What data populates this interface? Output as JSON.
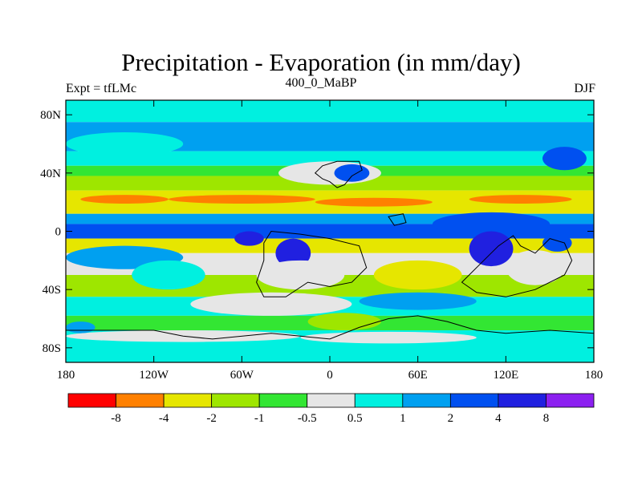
{
  "chart_data": {
    "type": "heatmap",
    "title": "Precipitation - Evaporation (in mm/day)",
    "subtitle": "400_0_MaBP",
    "left_label": "Expt = tfLMc",
    "right_label": "DJF",
    "x_range": [
      -180,
      180
    ],
    "y_range": [
      -90,
      90
    ],
    "y_ticks": [
      {
        "value": 80,
        "label": "80N"
      },
      {
        "value": 40,
        "label": "40N"
      },
      {
        "value": 0,
        "label": "0"
      },
      {
        "value": -40,
        "label": "40S"
      },
      {
        "value": -80,
        "label": "80S"
      }
    ],
    "x_ticks": [
      {
        "value": -180,
        "label": "180"
      },
      {
        "value": -120,
        "label": "120W"
      },
      {
        "value": -60,
        "label": "60W"
      },
      {
        "value": 0,
        "label": "0"
      },
      {
        "value": 60,
        "label": "60E"
      },
      {
        "value": 120,
        "label": "120E"
      },
      {
        "value": 180,
        "label": "180"
      }
    ],
    "colorbar": {
      "colors": [
        "#ff0000",
        "#ff8000",
        "#e6e600",
        "#9ee600",
        "#33e633",
        "#e6e6e6",
        "#00f0e0",
        "#00a0f0",
        "#0050f0",
        "#2020e0",
        "#8c20f0"
      ],
      "labels": [
        "-8",
        "-4",
        "-2",
        "-1",
        "-0.5",
        "0.5",
        "1",
        "2",
        "4",
        "8"
      ]
    },
    "zonal_bands": [
      {
        "lat_top": 90,
        "lat_bottom": 75,
        "color": "#00f0e0"
      },
      {
        "lat_top": 75,
        "lat_bottom": 55,
        "color": "#00a0f0"
      },
      {
        "lat_top": 55,
        "lat_bottom": 45,
        "color": "#00f0e0"
      },
      {
        "lat_top": 45,
        "lat_bottom": 38,
        "color": "#33e633"
      },
      {
        "lat_top": 38,
        "lat_bottom": 28,
        "color": "#9ee600"
      },
      {
        "lat_top": 28,
        "lat_bottom": 12,
        "color": "#e6e600"
      },
      {
        "lat_top": 12,
        "lat_bottom": 5,
        "color": "#00a0f0"
      },
      {
        "lat_top": 5,
        "lat_bottom": -5,
        "color": "#0050f0"
      },
      {
        "lat_top": -5,
        "lat_bottom": -15,
        "color": "#e6e600"
      },
      {
        "lat_top": -15,
        "lat_bottom": -30,
        "color": "#e6e6e6"
      },
      {
        "lat_top": -30,
        "lat_bottom": -45,
        "color": "#9ee600"
      },
      {
        "lat_top": -45,
        "lat_bottom": -58,
        "color": "#00f0e0"
      },
      {
        "lat_top": -58,
        "lat_bottom": -68,
        "color": "#33e633"
      },
      {
        "lat_top": -68,
        "lat_bottom": -90,
        "color": "#00f0e0"
      }
    ],
    "anomalies": [
      {
        "lon": -140,
        "lat": 60,
        "rlon": 40,
        "rlat": 8,
        "color": "#00f0e0"
      },
      {
        "lon": 160,
        "lat": 50,
        "rlon": 15,
        "rlat": 8,
        "color": "#0050f0"
      },
      {
        "lon": 0,
        "lat": 40,
        "rlon": 35,
        "rlat": 8,
        "color": "#e6e6e6"
      },
      {
        "lon": 15,
        "lat": 40,
        "rlon": 12,
        "rlat": 6,
        "color": "#0050f0"
      },
      {
        "lon": -140,
        "lat": 22,
        "rlon": 30,
        "rlat": 3,
        "color": "#ff8000"
      },
      {
        "lon": -60,
        "lat": 22,
        "rlon": 50,
        "rlat": 3,
        "color": "#ff8000"
      },
      {
        "lon": 30,
        "lat": 20,
        "rlon": 40,
        "rlat": 3,
        "color": "#ff8000"
      },
      {
        "lon": 130,
        "lat": 22,
        "rlon": 35,
        "rlat": 3,
        "color": "#ff8000"
      },
      {
        "lon": 110,
        "lat": 5,
        "rlon": 40,
        "rlat": 8,
        "color": "#0050f0"
      },
      {
        "lon": -55,
        "lat": -5,
        "rlon": 10,
        "rlat": 5,
        "color": "#2020e0"
      },
      {
        "lon": -25,
        "lat": -15,
        "rlon": 12,
        "rlat": 10,
        "color": "#2020e0"
      },
      {
        "lon": 110,
        "lat": -12,
        "rlon": 15,
        "rlat": 12,
        "color": "#2020e0"
      },
      {
        "lon": 155,
        "lat": -8,
        "rlon": 10,
        "rlat": 6,
        "color": "#0050f0"
      },
      {
        "lon": -140,
        "lat": -18,
        "rlon": 40,
        "rlat": 8,
        "color": "#00a0f0"
      },
      {
        "lon": -110,
        "lat": -30,
        "rlon": 25,
        "rlat": 10,
        "color": "#00f0e0"
      },
      {
        "lon": -20,
        "lat": -30,
        "rlon": 30,
        "rlat": 10,
        "color": "#e6e6e6"
      },
      {
        "lon": 60,
        "lat": -30,
        "rlon": 30,
        "rlat": 10,
        "color": "#e6e600"
      },
      {
        "lon": 140,
        "lat": -25,
        "rlon": 20,
        "rlat": 12,
        "color": "#e6e6e6"
      },
      {
        "lon": -40,
        "lat": -50,
        "rlon": 55,
        "rlat": 8,
        "color": "#e6e6e6"
      },
      {
        "lon": 60,
        "lat": -48,
        "rlon": 40,
        "rlat": 6,
        "color": "#00a0f0"
      },
      {
        "lon": 10,
        "lat": -62,
        "rlon": 25,
        "rlat": 6,
        "color": "#9ee600"
      },
      {
        "lon": -100,
        "lat": -72,
        "rlon": 80,
        "rlat": 4,
        "color": "#e6e6e6"
      },
      {
        "lon": 40,
        "lat": -73,
        "rlon": 60,
        "rlat": 4,
        "color": "#e6e6e6"
      },
      {
        "lon": -170,
        "lat": -66,
        "rlon": 10,
        "rlat": 4,
        "color": "#00a0f0"
      }
    ],
    "land_outlines": [
      {
        "name": "north-continent",
        "points": [
          [
            -5,
            45
          ],
          [
            5,
            48
          ],
          [
            20,
            48
          ],
          [
            22,
            42
          ],
          [
            15,
            38
          ],
          [
            10,
            32
          ],
          [
            5,
            30
          ],
          [
            0,
            34
          ],
          [
            -5,
            36
          ],
          [
            -10,
            40
          ]
        ]
      },
      {
        "name": "central-landmass",
        "points": [
          [
            -40,
            0
          ],
          [
            -20,
            -2
          ],
          [
            0,
            -5
          ],
          [
            20,
            -10
          ],
          [
            25,
            -25
          ],
          [
            15,
            -35
          ],
          [
            0,
            -38
          ],
          [
            -15,
            -35
          ],
          [
            -30,
            -45
          ],
          [
            -45,
            -45
          ],
          [
            -50,
            -35
          ],
          [
            -45,
            -20
          ],
          [
            -45,
            -8
          ]
        ]
      },
      {
        "name": "east-landmass",
        "points": [
          [
            90,
            -35
          ],
          [
            105,
            -20
          ],
          [
            115,
            -10
          ],
          [
            125,
            -3
          ],
          [
            130,
            -10
          ],
          [
            140,
            -15
          ],
          [
            150,
            -5
          ],
          [
            160,
            -8
          ],
          [
            165,
            -20
          ],
          [
            160,
            -30
          ],
          [
            140,
            -40
          ],
          [
            120,
            -45
          ],
          [
            100,
            -42
          ]
        ]
      },
      {
        "name": "small-island-north",
        "points": [
          [
            40,
            10
          ],
          [
            50,
            12
          ],
          [
            52,
            6
          ],
          [
            44,
            4
          ]
        ]
      },
      {
        "name": "southern-continent",
        "points": [
          [
            -180,
            -68
          ],
          [
            -120,
            -68
          ],
          [
            -100,
            -72
          ],
          [
            -80,
            -74
          ],
          [
            -40,
            -70
          ],
          [
            -20,
            -72
          ],
          [
            0,
            -74
          ],
          [
            20,
            -66
          ],
          [
            40,
            -60
          ],
          [
            60,
            -58
          ],
          [
            80,
            -62
          ],
          [
            100,
            -68
          ],
          [
            120,
            -70
          ],
          [
            150,
            -68
          ],
          [
            180,
            -70
          ],
          [
            180,
            -90
          ],
          [
            -180,
            -90
          ]
        ]
      }
    ]
  }
}
